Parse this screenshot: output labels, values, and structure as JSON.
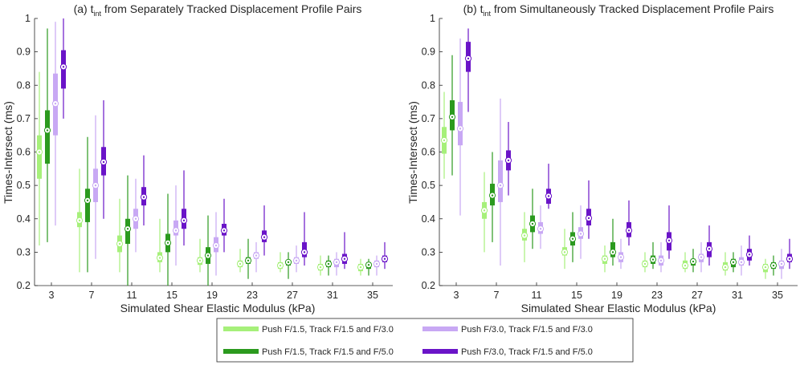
{
  "colors": {
    "light_green": "#a6f07a",
    "dark_green": "#2b9a1e",
    "light_purple": "#c8a8f4",
    "dark_purple": "#6a14c8",
    "axis": "#262626"
  },
  "legend": {
    "entries": [
      {
        "key": "s0",
        "label": "Push F/1.5, Track F/1.5 and F/3.0"
      },
      {
        "key": "s2",
        "label": "Push F/3.0, Track F/1.5 and F/3.0"
      },
      {
        "key": "s1",
        "label": "Push F/1.5, Track F/1.5 and F/5.0"
      },
      {
        "key": "s3",
        "label": "Push F/3.0, Track F/1.5 and F/5.0"
      }
    ]
  },
  "chart_data": [
    {
      "type": "boxplot",
      "title_prefix": "(a) t",
      "title_sub": "int",
      "title_suffix": " from Separately Tracked Displacement Profile Pairs",
      "xlabel": "Simulated Shear Elastic Modulus (kPa)",
      "ylabel": "Times-Intersect (ms)",
      "ylim": [
        0.2,
        1.0
      ],
      "yticks": [
        "0.2",
        "0.3",
        "0.4",
        "0.5",
        "0.6",
        "0.7",
        "0.8",
        "0.9",
        "1"
      ],
      "categories": [
        "3",
        "7",
        "11",
        "15",
        "19",
        "23",
        "27",
        "31",
        "35"
      ],
      "series": [
        {
          "name": "Push F/1.5, Track F/1.5 and F/3.0",
          "style": "light_green",
          "whisker_low": [
            0.32,
            0.24,
            0.24,
            0.24,
            0.24,
            0.24,
            0.24,
            0.23,
            0.23
          ],
          "q1": [
            0.52,
            0.375,
            0.3,
            0.27,
            0.262,
            0.255,
            0.25,
            0.245,
            0.243
          ],
          "median": [
            0.6,
            0.395,
            0.325,
            0.283,
            0.275,
            0.265,
            0.26,
            0.255,
            0.255
          ],
          "q3": [
            0.65,
            0.42,
            0.35,
            0.3,
            0.285,
            0.275,
            0.27,
            0.265,
            0.265
          ],
          "whisker_high": [
            0.84,
            0.55,
            0.46,
            0.4,
            0.34,
            0.31,
            0.3,
            0.29,
            0.28
          ]
        },
        {
          "name": "Push F/1.5, Track F/1.5 and F/5.0",
          "style": "dark_green",
          "whisker_low": [
            0.33,
            0.24,
            0.2,
            0.2,
            0.2,
            0.22,
            0.22,
            0.23,
            0.23
          ],
          "q1": [
            0.565,
            0.39,
            0.325,
            0.3,
            0.265,
            0.265,
            0.26,
            0.255,
            0.25
          ],
          "median": [
            0.665,
            0.455,
            0.37,
            0.328,
            0.29,
            0.275,
            0.27,
            0.265,
            0.262
          ],
          "q3": [
            0.725,
            0.49,
            0.4,
            0.355,
            0.315,
            0.285,
            0.275,
            0.275,
            0.27
          ],
          "whisker_high": [
            0.97,
            0.645,
            0.53,
            0.475,
            0.41,
            0.34,
            0.3,
            0.29,
            0.28
          ]
        },
        {
          "name": "Push F/3.0, Track F/1.5 and F/3.0",
          "style": "light_purple",
          "whisker_low": [
            0.38,
            0.28,
            0.3,
            0.26,
            0.23,
            0.24,
            0.24,
            0.23,
            0.23
          ],
          "q1": [
            0.65,
            0.45,
            0.37,
            0.35,
            0.3,
            0.28,
            0.265,
            0.255,
            0.255
          ],
          "median": [
            0.745,
            0.5,
            0.4,
            0.365,
            0.32,
            0.29,
            0.275,
            0.27,
            0.265
          ],
          "q3": [
            0.835,
            0.55,
            0.43,
            0.395,
            0.345,
            0.3,
            0.285,
            0.28,
            0.275
          ],
          "whisker_high": [
            0.99,
            0.71,
            0.52,
            0.5,
            0.42,
            0.33,
            0.32,
            0.3,
            0.29
          ]
        },
        {
          "name": "Push F/3.0, Track F/1.5 and F/5.0",
          "style": "dark_purple",
          "whisker_low": [
            0.7,
            0.4,
            0.38,
            0.32,
            0.3,
            0.29,
            0.26,
            0.25,
            0.25
          ],
          "q1": [
            0.79,
            0.53,
            0.44,
            0.37,
            0.35,
            0.33,
            0.285,
            0.265,
            0.27
          ],
          "median": [
            0.855,
            0.57,
            0.465,
            0.395,
            0.365,
            0.345,
            0.3,
            0.28,
            0.28
          ],
          "q3": [
            0.905,
            0.615,
            0.495,
            0.43,
            0.385,
            0.365,
            0.33,
            0.295,
            0.29
          ],
          "whisker_high": [
            1.0,
            0.755,
            0.59,
            0.545,
            0.46,
            0.44,
            0.42,
            0.36,
            0.33
          ]
        }
      ]
    },
    {
      "type": "boxplot",
      "title_prefix": "(b) t",
      "title_sub": "int",
      "title_suffix": " from Simultaneously Tracked Displacement Profile Pairs",
      "xlabel": "Simulated Shear Elastic Modulus (kPa)",
      "ylabel": "Times-Intersect (ms)",
      "ylim": [
        0.2,
        1.0
      ],
      "yticks": [
        "0.2",
        "0.3",
        "0.4",
        "0.5",
        "0.6",
        "0.7",
        "0.8",
        "0.9",
        "1"
      ],
      "categories": [
        "3",
        "7",
        "11",
        "15",
        "19",
        "23",
        "27",
        "31",
        "35"
      ],
      "series": [
        {
          "name": "Push F/1.5, Track F/1.5 and F/3.0",
          "style": "light_green",
          "whisker_low": [
            0.52,
            0.3,
            0.27,
            0.25,
            0.24,
            0.24,
            0.24,
            0.23,
            0.22
          ],
          "q1": [
            0.595,
            0.4,
            0.335,
            0.29,
            0.265,
            0.255,
            0.25,
            0.245,
            0.24
          ],
          "median": [
            0.635,
            0.425,
            0.35,
            0.3,
            0.28,
            0.265,
            0.26,
            0.255,
            0.255
          ],
          "q3": [
            0.675,
            0.45,
            0.37,
            0.315,
            0.29,
            0.275,
            0.275,
            0.27,
            0.265
          ],
          "whisker_high": [
            0.78,
            0.54,
            0.42,
            0.37,
            0.32,
            0.3,
            0.3,
            0.3,
            0.28
          ]
        },
        {
          "name": "Push F/1.5, Track F/1.5 and F/5.0",
          "style": "dark_green",
          "whisker_low": [
            0.53,
            0.33,
            0.31,
            0.27,
            0.26,
            0.25,
            0.24,
            0.24,
            0.23
          ],
          "q1": [
            0.665,
            0.44,
            0.36,
            0.32,
            0.285,
            0.265,
            0.26,
            0.255,
            0.25
          ],
          "median": [
            0.705,
            0.47,
            0.385,
            0.34,
            0.3,
            0.278,
            0.272,
            0.27,
            0.26
          ],
          "q3": [
            0.755,
            0.505,
            0.41,
            0.36,
            0.33,
            0.29,
            0.28,
            0.28,
            0.27
          ],
          "whisker_high": [
            0.89,
            0.6,
            0.49,
            0.42,
            0.4,
            0.33,
            0.31,
            0.3,
            0.29
          ]
        },
        {
          "name": "Push F/3.0, Track F/1.5 and F/3.0",
          "style": "light_purple",
          "whisker_low": [
            0.41,
            0.26,
            0.31,
            0.28,
            0.25,
            0.24,
            0.24,
            0.23,
            0.22
          ],
          "q1": [
            0.62,
            0.45,
            0.355,
            0.34,
            0.27,
            0.26,
            0.27,
            0.26,
            0.25
          ],
          "median": [
            0.67,
            0.5,
            0.37,
            0.355,
            0.285,
            0.275,
            0.285,
            0.27,
            0.265
          ],
          "q3": [
            0.75,
            0.575,
            0.39,
            0.375,
            0.3,
            0.29,
            0.295,
            0.285,
            0.275
          ],
          "whisker_high": [
            0.94,
            0.76,
            0.44,
            0.44,
            0.34,
            0.33,
            0.33,
            0.32,
            0.31
          ]
        },
        {
          "name": "Push F/3.0, Track F/1.5 and F/5.0",
          "style": "dark_purple",
          "whisker_low": [
            0.72,
            0.47,
            0.43,
            0.34,
            0.32,
            0.28,
            0.26,
            0.26,
            0.25
          ],
          "q1": [
            0.84,
            0.545,
            0.445,
            0.38,
            0.345,
            0.305,
            0.285,
            0.275,
            0.27
          ],
          "median": [
            0.88,
            0.575,
            0.468,
            0.402,
            0.365,
            0.335,
            0.31,
            0.293,
            0.28
          ],
          "q3": [
            0.93,
            0.605,
            0.49,
            0.43,
            0.39,
            0.36,
            0.33,
            0.31,
            0.295
          ],
          "whisker_high": [
            0.97,
            0.69,
            0.565,
            0.515,
            0.455,
            0.44,
            0.38,
            0.35,
            0.34
          ]
        }
      ]
    }
  ]
}
